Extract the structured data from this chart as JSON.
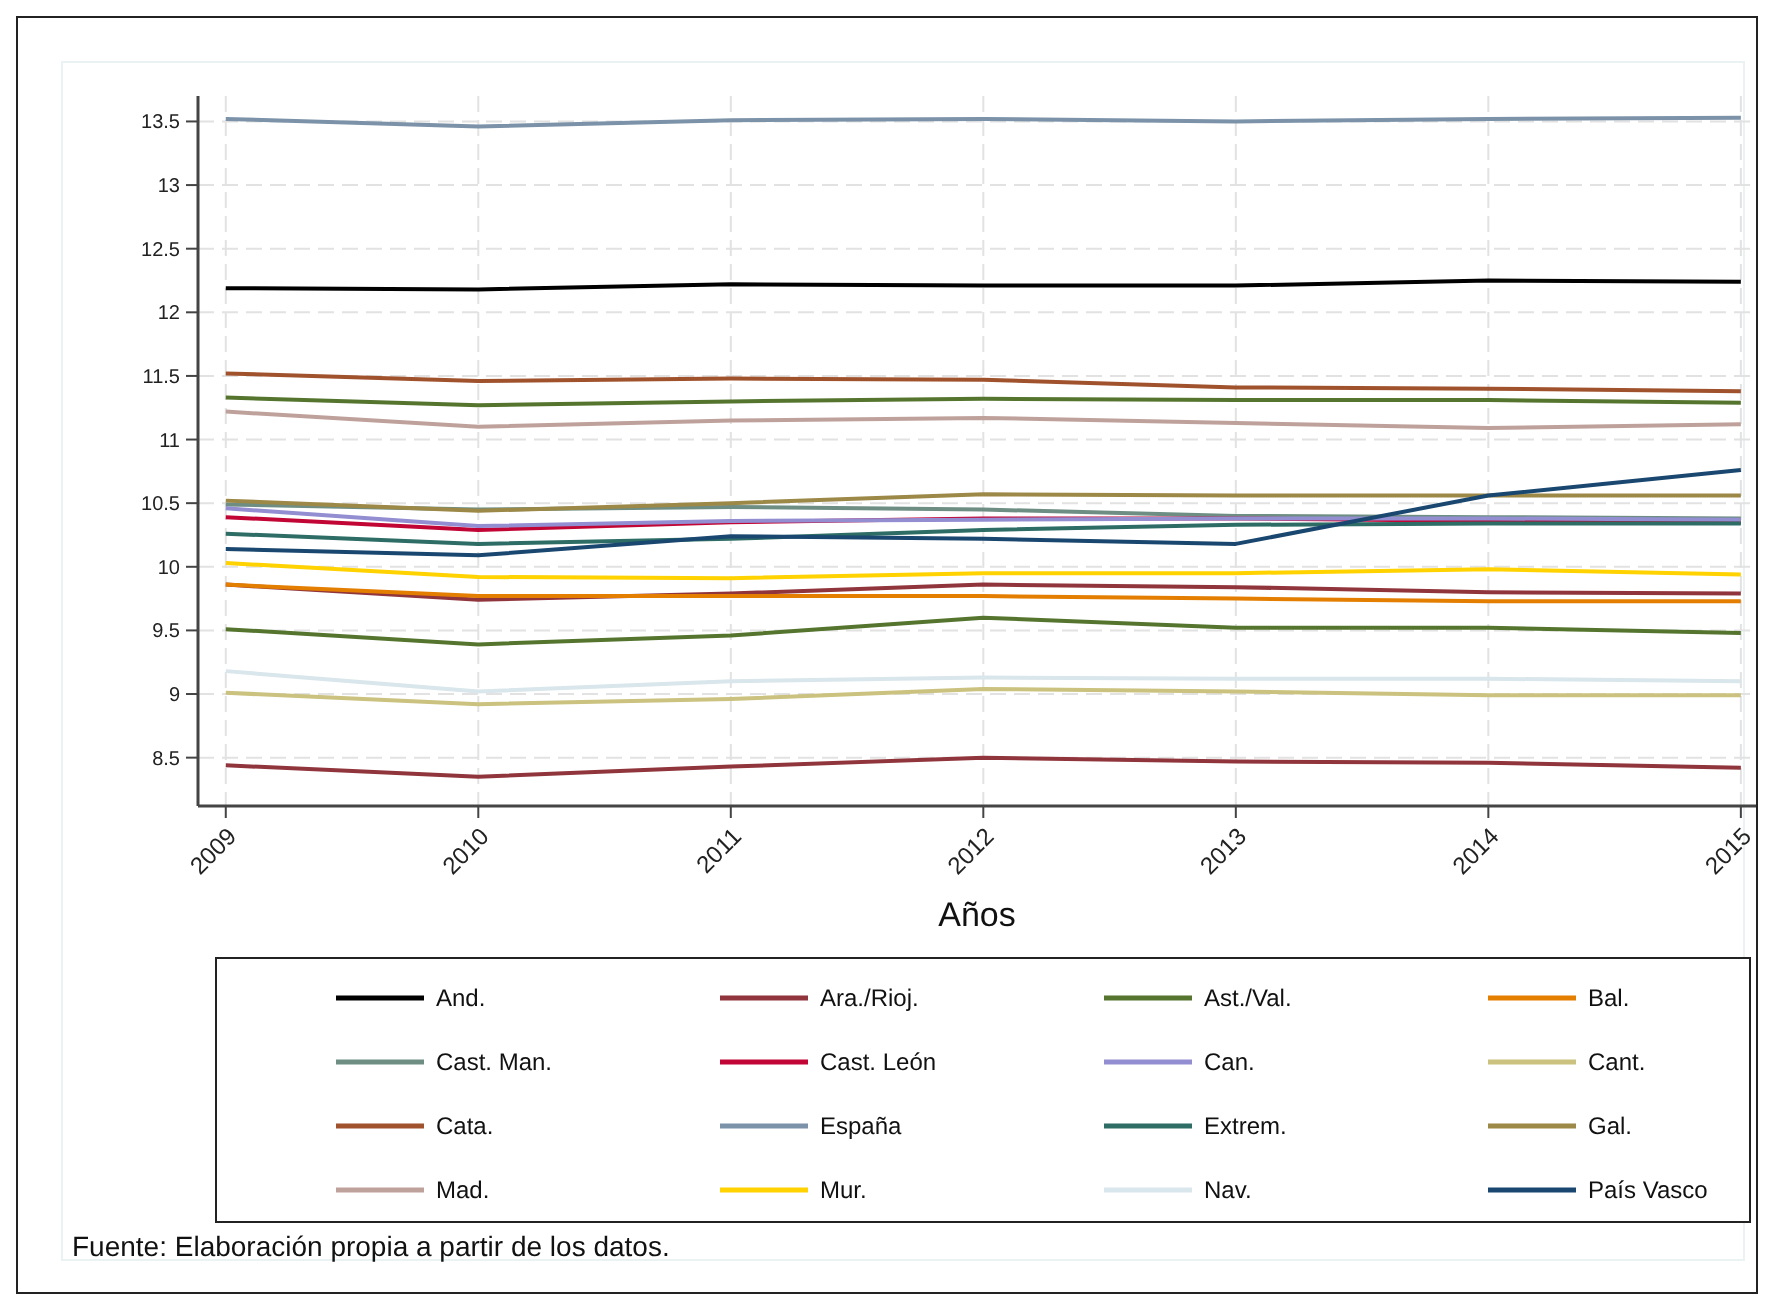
{
  "chart_data": {
    "type": "line",
    "xlabel": "Años",
    "x": [
      2009,
      2010,
      2011,
      2012,
      2013,
      2014,
      2015
    ],
    "xlim": [
      2008.89,
      2015.06
    ],
    "xticks": [
      2009,
      2010,
      2011,
      2012,
      2013,
      2014,
      2015
    ],
    "ylim": [
      8.12,
      13.7
    ],
    "yticks": [
      8.5,
      9,
      9.5,
      10,
      10.5,
      11,
      11.5,
      12,
      12.5,
      13,
      13.5
    ],
    "grid": true,
    "legend": "bottom",
    "line_style": "solid",
    "marker": "none",
    "annotations": [
      "Fuente: Elaboración propia a partir de los datos."
    ],
    "series": [
      {
        "name": "And.",
        "color": "#000000",
        "values": [
          12.19,
          12.18,
          12.22,
          12.21,
          12.21,
          12.25,
          12.24
        ]
      },
      {
        "name": "Ara./Rioj.",
        "color": "#90353b",
        "values": [
          9.86,
          9.74,
          9.79,
          9.86,
          9.84,
          9.8,
          9.79
        ]
      },
      {
        "name": "Ast./Val.",
        "color": "#55752f",
        "values": [
          11.33,
          11.27,
          11.3,
          11.32,
          11.31,
          11.31,
          11.29
        ]
      },
      {
        "name": "Bal.",
        "color": "#e37e00",
        "values": [
          9.86,
          9.77,
          9.77,
          9.77,
          9.75,
          9.73,
          9.73
        ]
      },
      {
        "name": "Cast. Man.",
        "color": "#6e8e84",
        "values": [
          10.49,
          10.45,
          10.47,
          10.45,
          10.4,
          10.39,
          10.38
        ]
      },
      {
        "name": "Cast. León",
        "color": "#c10534",
        "values": [
          10.39,
          10.29,
          10.35,
          10.38,
          10.38,
          10.36,
          10.35
        ]
      },
      {
        "name": "Can.",
        "color": "#938dd2",
        "values": [
          10.46,
          10.32,
          10.36,
          10.37,
          10.38,
          10.38,
          10.37
        ]
      },
      {
        "name": "Cant.",
        "color": "#cac27e",
        "values": [
          9.01,
          8.92,
          8.96,
          9.04,
          9.02,
          8.99,
          8.99
        ]
      },
      {
        "name": "Cata.",
        "color": "#a0522d",
        "values": [
          11.52,
          11.46,
          11.48,
          11.47,
          11.41,
          11.4,
          11.38
        ]
      },
      {
        "name": "España",
        "color": "#7b92a8",
        "values": [
          13.52,
          13.46,
          13.51,
          13.52,
          13.5,
          13.52,
          13.53
        ]
      },
      {
        "name": "Extrem.",
        "color": "#2d6d66",
        "values": [
          10.26,
          10.18,
          10.22,
          10.29,
          10.33,
          10.34,
          10.34
        ]
      },
      {
        "name": "Gal.",
        "color": "#9c8847",
        "values": [
          10.52,
          10.44,
          10.5,
          10.57,
          10.56,
          10.56,
          10.56
        ]
      },
      {
        "name": "Mad.",
        "color": "#bfa19c",
        "values": [
          11.22,
          11.1,
          11.15,
          11.17,
          11.13,
          11.09,
          11.12
        ]
      },
      {
        "name": "Mur.",
        "color": "#ffd200",
        "values": [
          10.03,
          9.92,
          9.91,
          9.95,
          9.95,
          9.98,
          9.94
        ]
      },
      {
        "name": "Nav.",
        "color": "#d9e6eb",
        "values": [
          9.18,
          9.02,
          9.1,
          9.13,
          9.12,
          9.12,
          9.1
        ]
      },
      {
        "name": "País Vasco",
        "color": "#1a476f",
        "values": [
          10.14,
          10.09,
          10.24,
          10.22,
          10.18,
          10.56,
          10.76
        ]
      },
      {
        "color": "#55752f",
        "values": [
          9.51,
          9.39,
          9.46,
          9.6,
          9.52,
          9.52,
          9.48
        ]
      },
      {
        "color": "#90353b",
        "values": [
          8.44,
          8.35,
          8.43,
          8.5,
          8.47,
          8.46,
          8.42
        ]
      }
    ]
  }
}
